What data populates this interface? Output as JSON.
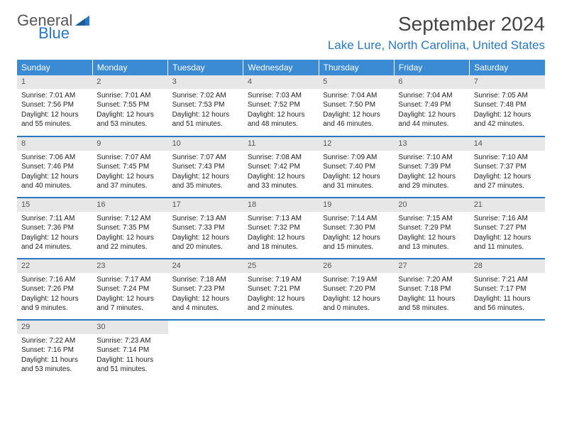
{
  "logo": {
    "text_top": "General",
    "text_bottom": "Blue"
  },
  "title": "September 2024",
  "location": "Lake Lure, North Carolina, United States",
  "colors": {
    "header_bg": "#3b8bd4",
    "header_fg": "#ffffff",
    "accent": "#2b78c2",
    "daynum_bg": "#e7e7e7",
    "text": "#222222"
  },
  "day_headers": [
    "Sunday",
    "Monday",
    "Tuesday",
    "Wednesday",
    "Thursday",
    "Friday",
    "Saturday"
  ],
  "weeks": [
    [
      {
        "n": "1",
        "sr": "7:01 AM",
        "ss": "7:56 PM",
        "dl": "12 hours and 55 minutes."
      },
      {
        "n": "2",
        "sr": "7:01 AM",
        "ss": "7:55 PM",
        "dl": "12 hours and 53 minutes."
      },
      {
        "n": "3",
        "sr": "7:02 AM",
        "ss": "7:53 PM",
        "dl": "12 hours and 51 minutes."
      },
      {
        "n": "4",
        "sr": "7:03 AM",
        "ss": "7:52 PM",
        "dl": "12 hours and 48 minutes."
      },
      {
        "n": "5",
        "sr": "7:04 AM",
        "ss": "7:50 PM",
        "dl": "12 hours and 46 minutes."
      },
      {
        "n": "6",
        "sr": "7:04 AM",
        "ss": "7:49 PM",
        "dl": "12 hours and 44 minutes."
      },
      {
        "n": "7",
        "sr": "7:05 AM",
        "ss": "7:48 PM",
        "dl": "12 hours and 42 minutes."
      }
    ],
    [
      {
        "n": "8",
        "sr": "7:06 AM",
        "ss": "7:46 PM",
        "dl": "12 hours and 40 minutes."
      },
      {
        "n": "9",
        "sr": "7:07 AM",
        "ss": "7:45 PM",
        "dl": "12 hours and 37 minutes."
      },
      {
        "n": "10",
        "sr": "7:07 AM",
        "ss": "7:43 PM",
        "dl": "12 hours and 35 minutes."
      },
      {
        "n": "11",
        "sr": "7:08 AM",
        "ss": "7:42 PM",
        "dl": "12 hours and 33 minutes."
      },
      {
        "n": "12",
        "sr": "7:09 AM",
        "ss": "7:40 PM",
        "dl": "12 hours and 31 minutes."
      },
      {
        "n": "13",
        "sr": "7:10 AM",
        "ss": "7:39 PM",
        "dl": "12 hours and 29 minutes."
      },
      {
        "n": "14",
        "sr": "7:10 AM",
        "ss": "7:37 PM",
        "dl": "12 hours and 27 minutes."
      }
    ],
    [
      {
        "n": "15",
        "sr": "7:11 AM",
        "ss": "7:36 PM",
        "dl": "12 hours and 24 minutes."
      },
      {
        "n": "16",
        "sr": "7:12 AM",
        "ss": "7:35 PM",
        "dl": "12 hours and 22 minutes."
      },
      {
        "n": "17",
        "sr": "7:13 AM",
        "ss": "7:33 PM",
        "dl": "12 hours and 20 minutes."
      },
      {
        "n": "18",
        "sr": "7:13 AM",
        "ss": "7:32 PM",
        "dl": "12 hours and 18 minutes."
      },
      {
        "n": "19",
        "sr": "7:14 AM",
        "ss": "7:30 PM",
        "dl": "12 hours and 15 minutes."
      },
      {
        "n": "20",
        "sr": "7:15 AM",
        "ss": "7:29 PM",
        "dl": "12 hours and 13 minutes."
      },
      {
        "n": "21",
        "sr": "7:16 AM",
        "ss": "7:27 PM",
        "dl": "12 hours and 11 minutes."
      }
    ],
    [
      {
        "n": "22",
        "sr": "7:16 AM",
        "ss": "7:26 PM",
        "dl": "12 hours and 9 minutes."
      },
      {
        "n": "23",
        "sr": "7:17 AM",
        "ss": "7:24 PM",
        "dl": "12 hours and 7 minutes."
      },
      {
        "n": "24",
        "sr": "7:18 AM",
        "ss": "7:23 PM",
        "dl": "12 hours and 4 minutes."
      },
      {
        "n": "25",
        "sr": "7:19 AM",
        "ss": "7:21 PM",
        "dl": "12 hours and 2 minutes."
      },
      {
        "n": "26",
        "sr": "7:19 AM",
        "ss": "7:20 PM",
        "dl": "12 hours and 0 minutes."
      },
      {
        "n": "27",
        "sr": "7:20 AM",
        "ss": "7:18 PM",
        "dl": "11 hours and 58 minutes."
      },
      {
        "n": "28",
        "sr": "7:21 AM",
        "ss": "7:17 PM",
        "dl": "11 hours and 56 minutes."
      }
    ],
    [
      {
        "n": "29",
        "sr": "7:22 AM",
        "ss": "7:16 PM",
        "dl": "11 hours and 53 minutes."
      },
      {
        "n": "30",
        "sr": "7:23 AM",
        "ss": "7:14 PM",
        "dl": "11 hours and 51 minutes."
      },
      null,
      null,
      null,
      null,
      null
    ]
  ],
  "labels": {
    "sunrise": "Sunrise:",
    "sunset": "Sunset:",
    "daylight": "Daylight:"
  }
}
